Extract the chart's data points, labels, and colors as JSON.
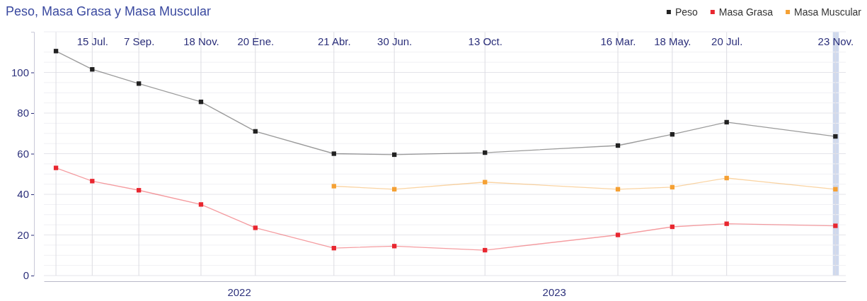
{
  "chart_data": {
    "type": "line",
    "title": "Peso, Masa Grasa y Masa Muscular",
    "x": [
      "2021-06-03",
      "2021-07-15",
      "2021-09-07",
      "2021-11-18",
      "2022-01-20",
      "2022-04-21",
      "2022-06-30",
      "2022-10-13",
      "2023-03-16",
      "2023-05-18",
      "2023-07-20",
      "2023-11-23"
    ],
    "series": [
      {
        "name": "Peso",
        "color": "#222222",
        "values": [
          110.5,
          101.5,
          94.5,
          85.5,
          71,
          60,
          59.5,
          60.5,
          64,
          69.5,
          75.5,
          68.5
        ]
      },
      {
        "name": "Masa Grasa",
        "color": "#e8262f",
        "values": [
          53,
          46.5,
          42,
          35,
          23.5,
          13.5,
          14.5,
          12.5,
          20,
          24,
          25.5,
          24.5
        ]
      },
      {
        "name": "Masa Muscular",
        "color": "#f5a033",
        "values": [
          null,
          null,
          null,
          null,
          null,
          44,
          42.5,
          46,
          42.5,
          43.5,
          48,
          42.5
        ]
      }
    ],
    "xlim": [
      "2021-05-20",
      "2023-12-05"
    ],
    "xticks": [
      {
        "value": "2022-01-01",
        "label": "2022"
      },
      {
        "value": "2023-01-01",
        "label": "2023"
      }
    ],
    "x2lim": [
      "2021-05-20",
      "2023-12-05"
    ],
    "x2ticks": [
      {
        "value": "2021-06-03",
        "label": null
      },
      {
        "value": "2021-07-15",
        "label": "15 Jul."
      },
      {
        "value": "2021-09-07",
        "label": "7 Sep."
      },
      {
        "value": "2021-11-18",
        "label": "18 Nov."
      },
      {
        "value": "2022-01-20",
        "label": "20 Ene."
      },
      {
        "value": "2022-04-21",
        "label": "21 Abr."
      },
      {
        "value": "2022-06-30",
        "label": "30 Jun."
      },
      {
        "value": "2022-10-13",
        "label": "13 Oct."
      },
      {
        "value": "2023-03-16",
        "label": "16 Mar."
      },
      {
        "value": "2023-05-18",
        "label": "18 May."
      },
      {
        "value": "2023-07-20",
        "label": "20 Jul."
      },
      {
        "value": "2023-11-23",
        "label": "23 Nov."
      }
    ],
    "ylim": [
      0,
      120
    ],
    "yticks": [
      0,
      {
        "value": 5,
        "label": null
      },
      {
        "value": 10,
        "label": null
      },
      {
        "value": 15,
        "label": null
      },
      20,
      {
        "value": 25,
        "label": null
      },
      {
        "value": 30,
        "label": null
      },
      {
        "value": 35,
        "label": null
      },
      40,
      {
        "value": 45,
        "label": null
      },
      {
        "value": 50,
        "label": null
      },
      {
        "value": 55,
        "label": null
      },
      60,
      {
        "value": 65,
        "label": null
      },
      {
        "value": 70,
        "label": null
      },
      {
        "value": 75,
        "label": null
      },
      80,
      {
        "value": 85,
        "label": null
      },
      {
        "value": 90,
        "label": null
      },
      {
        "value": 95,
        "label": null
      },
      100,
      {
        "value": 105,
        "label": null
      },
      {
        "value": 110,
        "label": null
      }
    ],
    "bands": [
      {
        "axis": "x",
        "from": "2023-11-20",
        "to": "2023-11-27",
        "color": "#cfd9ee"
      }
    ],
    "grid": true,
    "legend": "top right",
    "marker": "square",
    "line_style": "solid"
  }
}
